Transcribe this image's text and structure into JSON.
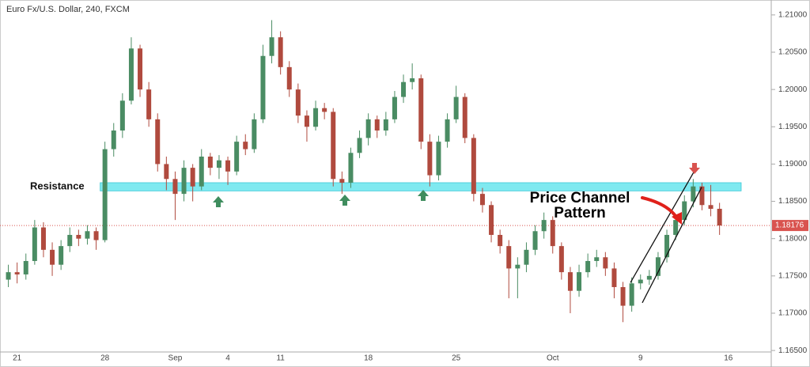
{
  "chart_data": {
    "type": "candlestick",
    "title": "Euro Fx/U.S. Dollar, 240, FXCM",
    "categories": [
      null,
      "21",
      null,
      null,
      null,
      null,
      null,
      null,
      null,
      null,
      null,
      "28",
      null,
      null,
      null,
      null,
      null,
      null,
      null,
      "Sep",
      null,
      null,
      null,
      null,
      null,
      "4",
      null,
      null,
      null,
      null,
      null,
      "11",
      null,
      null,
      null,
      null,
      null,
      null,
      null,
      null,
      null,
      "18",
      null,
      null,
      null,
      null,
      null,
      null,
      null,
      null,
      null,
      "25",
      null,
      null,
      null,
      null,
      null,
      null,
      null,
      null,
      null,
      null,
      "Oct",
      null,
      null,
      null,
      null,
      null,
      null,
      null,
      null,
      null,
      "9",
      null,
      null,
      null,
      null,
      null,
      null,
      null,
      null,
      null,
      "16",
      null,
      null,
      null
    ],
    "open": [
      1.1745,
      1.1755,
      1.1752,
      1.177,
      1.1815,
      1.1785,
      1.1765,
      1.179,
      1.1805,
      1.18,
      1.181,
      1.1798,
      1.192,
      1.1945,
      1.1985,
      1.2055,
      1.2,
      1.196,
      1.19,
      1.188,
      1.186,
      1.1895,
      1.187,
      1.191,
      1.1895,
      1.1905,
      1.189,
      1.193,
      1.192,
      1.196,
      1.2045,
      1.207,
      1.203,
      1.2,
      1.1965,
      1.195,
      1.1975,
      1.197,
      1.188,
      1.1875,
      1.1915,
      1.1935,
      1.196,
      1.1945,
      1.196,
      1.199,
      1.201,
      1.2015,
      1.193,
      1.1885,
      1.193,
      1.196,
      1.199,
      1.1935,
      1.186,
      1.1845,
      1.1805,
      1.179,
      1.176,
      1.1765,
      1.1785,
      1.181,
      1.1825,
      1.179,
      1.1755,
      1.173,
      1.1755,
      1.177,
      1.1775,
      1.176,
      1.1735,
      1.171,
      1.174,
      1.1745,
      1.175,
      1.1775,
      1.1805,
      1.1825,
      1.185,
      1.187,
      1.1845,
      1.184,
      null,
      null,
      null,
      null
    ],
    "high": [
      1.1765,
      1.1768,
      1.178,
      1.1825,
      1.1822,
      1.1795,
      1.1798,
      1.1815,
      1.1812,
      1.1818,
      1.1815,
      1.193,
      1.1955,
      1.1995,
      1.207,
      1.206,
      1.201,
      1.1968,
      1.191,
      1.189,
      1.1905,
      1.19,
      1.192,
      1.1915,
      1.1912,
      1.191,
      1.1938,
      1.194,
      1.1968,
      1.206,
      1.2093,
      1.2078,
      1.2038,
      1.2008,
      1.1972,
      1.1985,
      1.1982,
      1.1975,
      1.189,
      1.1922,
      1.1945,
      1.1968,
      1.1965,
      1.197,
      1.1998,
      1.202,
      1.2035,
      1.202,
      1.194,
      1.1938,
      1.1968,
      1.2005,
      1.1995,
      1.194,
      1.1868,
      1.185,
      1.1812,
      1.1798,
      1.1775,
      1.1795,
      1.1818,
      1.1835,
      1.183,
      1.1795,
      1.1762,
      1.1765,
      1.178,
      1.1785,
      1.1782,
      1.1768,
      1.1742,
      1.1748,
      1.1752,
      1.1758,
      1.1782,
      1.1812,
      1.1832,
      1.1858,
      1.188,
      1.1875,
      1.1872,
      1.1848,
      null,
      null,
      null,
      null
    ],
    "low": [
      1.1735,
      1.174,
      1.1745,
      1.1765,
      1.1775,
      1.175,
      1.1758,
      1.1782,
      1.179,
      1.1792,
      1.1785,
      1.1795,
      1.191,
      1.1935,
      1.198,
      1.199,
      1.195,
      1.189,
      1.1865,
      1.1825,
      1.185,
      1.185,
      1.1865,
      1.1885,
      1.188,
      1.1872,
      1.1885,
      1.1912,
      1.1915,
      1.1955,
      1.2035,
      1.202,
      1.199,
      1.1955,
      1.193,
      1.1945,
      1.196,
      1.187,
      1.186,
      1.1868,
      1.1908,
      1.1925,
      1.1935,
      1.1938,
      1.1955,
      1.1982,
      1.2,
      1.192,
      1.187,
      1.1878,
      1.1922,
      1.1955,
      1.1928,
      1.185,
      1.1835,
      1.1795,
      1.178,
      1.172,
      1.172,
      1.1755,
      1.1778,
      1.18,
      1.178,
      1.1745,
      1.17,
      1.1722,
      1.1748,
      1.1762,
      1.175,
      1.172,
      1.1688,
      1.1702,
      1.1732,
      1.1738,
      1.1745,
      1.1768,
      1.1798,
      1.1818,
      1.1842,
      1.1838,
      1.183,
      1.1805,
      null,
      null,
      null,
      null
    ],
    "close": [
      1.1755,
      1.1752,
      1.177,
      1.1815,
      1.1785,
      1.1765,
      1.179,
      1.1805,
      1.18,
      1.181,
      1.1798,
      1.192,
      1.1945,
      1.1985,
      1.2055,
      1.2,
      1.196,
      1.19,
      1.188,
      1.186,
      1.1895,
      1.187,
      1.191,
      1.1895,
      1.1905,
      1.189,
      1.193,
      1.192,
      1.196,
      1.2045,
      1.207,
      1.203,
      1.2,
      1.1965,
      1.195,
      1.1975,
      1.197,
      1.188,
      1.1875,
      1.1915,
      1.1935,
      1.196,
      1.1945,
      1.196,
      1.199,
      1.201,
      1.2015,
      1.193,
      1.1885,
      1.193,
      1.196,
      1.199,
      1.1935,
      1.186,
      1.1845,
      1.1805,
      1.179,
      1.176,
      1.1765,
      1.1785,
      1.181,
      1.1825,
      1.179,
      1.1755,
      1.173,
      1.1755,
      1.177,
      1.1775,
      1.176,
      1.1735,
      1.171,
      1.174,
      1.1745,
      1.175,
      1.1775,
      1.1805,
      1.1825,
      1.185,
      1.187,
      1.1845,
      1.184,
      1.18176,
      null,
      null,
      null,
      null
    ],
    "up_color": "#4a8c63",
    "down_color": "#b04a3e",
    "ylim": [
      1.1648,
      1.212
    ],
    "yticks": [
      {
        "value": 1.165,
        "label": "1.16500"
      },
      {
        "value": 1.17,
        "label": "1.17000"
      },
      {
        "value": 1.175,
        "label": "1.17500"
      },
      {
        "value": 1.18,
        "label": "1.18000"
      },
      {
        "value": 1.185,
        "label": "1.18500"
      },
      {
        "value": 1.19,
        "label": "1.19000"
      },
      {
        "value": 1.195,
        "label": "1.19500"
      },
      {
        "value": 1.2,
        "label": "1.20000"
      },
      {
        "value": 1.205,
        "label": "1.20500"
      },
      {
        "value": 1.21,
        "label": "1.21000"
      }
    ],
    "last_price": {
      "value": 1.18176,
      "label": "1.18176",
      "color": "#d9534f"
    },
    "resistance": {
      "label": "Resistance",
      "low": 1.1864,
      "high": 1.1875,
      "color": "#7fe9f0"
    },
    "channel": [
      {
        "start": 1.1741,
        "end": 1.1891
      },
      {
        "start": 1.1714,
        "end": 1.1869
      }
    ],
    "annotation": [
      "Price Channel",
      "Pattern"
    ]
  }
}
